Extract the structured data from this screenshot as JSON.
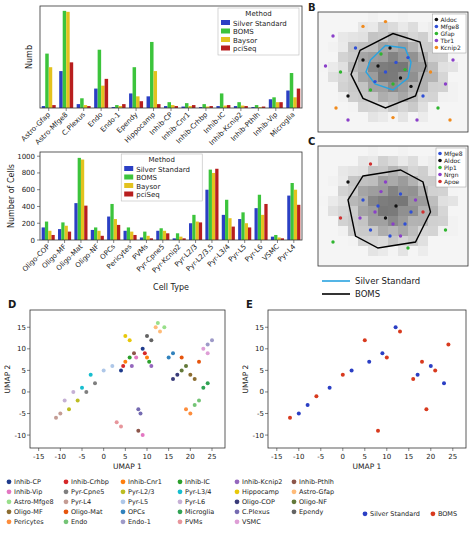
{
  "chart_data": [
    {
      "type": "bar",
      "y_label": "Numb",
      "legend_title": "Method",
      "legend": "top-right",
      "tick_labels": "x",
      "grid": false,
      "ylim": [
        0,
        1050
      ],
      "categories": [
        "Astro-Gfap",
        "Astro-Mfge8",
        "C.Plexus",
        "Endo",
        "Endo-1",
        "Ependy",
        "Hippocamp",
        "Inhib-CP",
        "Inhib-Cnr1",
        "Inhib-Crhbp",
        "Inhib-IC",
        "Inhib-Kcnip2",
        "Inhib-Pthlh",
        "Inhib-Vip",
        "Microglia"
      ],
      "series": [
        {
          "name": "Silver Standard",
          "color": "#2b3fc4",
          "values": [
            20,
            380,
            40,
            200,
            10,
            150,
            120,
            20,
            15,
            10,
            20,
            20,
            10,
            90,
            180
          ]
        },
        {
          "name": "BOMS",
          "color": "#3cc43c",
          "values": [
            560,
            1000,
            100,
            600,
            30,
            420,
            680,
            60,
            50,
            40,
            150,
            60,
            30,
            110,
            360
          ]
        },
        {
          "name": "Baysor",
          "color": "#e3c21e",
          "values": [
            420,
            990,
            30,
            230,
            20,
            120,
            380,
            30,
            20,
            15,
            25,
            25,
            10,
            60,
            110
          ]
        },
        {
          "name": "pciSeq",
          "color": "#b81e1e",
          "values": [
            30,
            470,
            20,
            300,
            40,
            70,
            40,
            20,
            30,
            20,
            30,
            20,
            15,
            60,
            200
          ]
        }
      ]
    },
    {
      "type": "bar",
      "y_label": "Number of Cells",
      "x_label": "Cell Type",
      "legend_title": "Method",
      "legend": "top",
      "grid": false,
      "ylim": [
        0,
        1050
      ],
      "yticks": [
        0,
        200,
        400,
        600,
        800,
        1000
      ],
      "categories": [
        "Oligo-COP",
        "Oligo-MF",
        "Oligo-Mat",
        "Oligo-NF",
        "OPCs",
        "Pericytes",
        "PVMs",
        "Pyr-Cpne5",
        "Pyr-Kcnip2",
        "Pyr-L2/3",
        "Pyr-L2/3,5",
        "Pyr-L3/4",
        "Pyr-L5",
        "Pyr-L6",
        "VSMC",
        "Pyr-L4"
      ],
      "series": [
        {
          "name": "Silver Standard",
          "color": "#2b3fc4",
          "values": [
            150,
            130,
            440,
            120,
            280,
            110,
            30,
            110,
            20,
            200,
            600,
            300,
            250,
            380,
            40,
            530
          ]
        },
        {
          "name": "BOMS",
          "color": "#3cc43c",
          "values": [
            220,
            210,
            980,
            150,
            430,
            150,
            100,
            140,
            80,
            300,
            840,
            480,
            330,
            540,
            60,
            680
          ]
        },
        {
          "name": "Baysor",
          "color": "#e3c21e",
          "values": [
            110,
            170,
            960,
            110,
            250,
            100,
            50,
            110,
            40,
            220,
            800,
            260,
            200,
            300,
            30,
            600
          ]
        },
        {
          "name": "pciSeq",
          "color": "#b81e1e",
          "values": [
            60,
            100,
            410,
            50,
            180,
            60,
            20,
            80,
            20,
            210,
            850,
            160,
            150,
            430,
            20,
            420
          ]
        }
      ]
    },
    {
      "type": "scatter",
      "panel": "B",
      "legend": "top-right",
      "tick_labels": false,
      "xlim": [
        0,
        100
      ],
      "ylim": [
        0,
        100
      ],
      "outlines": [
        {
          "method": 0,
          "x": [
            35,
            45,
            58,
            62,
            60,
            50,
            38,
            32
          ],
          "y": [
            60,
            72,
            70,
            58,
            45,
            35,
            40,
            50
          ]
        },
        {
          "method": 1,
          "x": [
            28,
            50,
            68,
            72,
            65,
            45,
            30,
            22
          ],
          "y": [
            68,
            82,
            75,
            55,
            30,
            20,
            28,
            48
          ]
        }
      ],
      "series": [
        {
          "name": "Aldoc",
          "color": "#111111",
          "x": [
            40,
            55,
            30,
            62,
            48,
            20
          ],
          "y": [
            55,
            45,
            60,
            38,
            70,
            30
          ]
        },
        {
          "name": "Mfge8",
          "color": "#2f4fd6",
          "x": [
            45,
            52,
            38,
            60,
            25,
            70
          ],
          "y": [
            50,
            58,
            42,
            62,
            70,
            30
          ]
        },
        {
          "name": "Gfap",
          "color": "#2fb52f",
          "x": [
            50,
            42,
            35,
            58,
            15,
            80
          ],
          "y": [
            40,
            65,
            35,
            52,
            50,
            20
          ]
        },
        {
          "name": "Tbr1",
          "color": "#8a3fc9",
          "x": [
            10,
            85,
            66,
            20,
            5,
            90
          ],
          "y": [
            80,
            40,
            10,
            10,
            55,
            60
          ]
        },
        {
          "name": "Kcnip2",
          "color": "#f08a1c",
          "x": [
            75,
            12,
            50,
            45,
            88,
            30
          ],
          "y": [
            50,
            20,
            12,
            92,
            10,
            88
          ]
        }
      ]
    },
    {
      "type": "scatter",
      "panel": "C",
      "legend": "top-right",
      "tick_labels": false,
      "xlim": [
        0,
        100
      ],
      "ylim": [
        0,
        100
      ],
      "outlines": [
        {
          "method": 1,
          "x": [
            30,
            55,
            70,
            75,
            65,
            40,
            25,
            20
          ],
          "y": [
            75,
            80,
            70,
            45,
            20,
            15,
            25,
            55
          ]
        }
      ],
      "series": [
        {
          "name": "Mfge8",
          "color": "#2f4fd6",
          "x": [
            40,
            55,
            35,
            62,
            48,
            30,
            58
          ],
          "y": [
            50,
            60,
            30,
            45,
            25,
            55,
            35
          ]
        },
        {
          "name": "Aldoc",
          "color": "#111111",
          "x": [
            45,
            52,
            20
          ],
          "y": [
            40,
            50,
            70
          ]
        },
        {
          "name": "Plp1",
          "color": "#2fb52f",
          "x": [
            10,
            85,
            60
          ],
          "y": [
            20,
            30,
            15
          ]
        },
        {
          "name": "Nrgn",
          "color": "#8a3fc9",
          "x": [
            42,
            50,
            65,
            38,
            55,
            28,
            45
          ],
          "y": [
            62,
            35,
            55,
            45,
            25,
            40,
            70
          ]
        },
        {
          "name": "Apoe",
          "color": "#d03030",
          "x": [
            70,
            15,
            35
          ],
          "y": [
            45,
            40,
            85
          ]
        }
      ]
    },
    {
      "type": "scatter",
      "panel": "D",
      "legend": "bottom",
      "x_label": "UMAP 1",
      "y_label": "UMAP 2",
      "xlim": [
        -17,
        28
      ],
      "ylim": [
        -13,
        19
      ],
      "xticks": [
        -15,
        -10,
        -5,
        0,
        5,
        10,
        15,
        20,
        25
      ],
      "yticks": [
        -10,
        -5,
        0,
        5,
        10,
        15
      ],
      "series": [
        {
          "name": "Inhib-CP",
          "color": "#1f3b8c",
          "x": [
            9,
            4
          ],
          "y": [
            10,
            5
          ]
        },
        {
          "name": "Inhib-Crhbp",
          "color": "#d62728",
          "x": [
            9.5,
            4.5
          ],
          "y": [
            9,
            6
          ]
        },
        {
          "name": "Inhib-Cnr1",
          "color": "#ff7f0e",
          "x": [
            10,
            5
          ],
          "y": [
            8,
            7
          ]
        },
        {
          "name": "Inhib-IC",
          "color": "#2ca02c",
          "x": [
            10.5,
            6
          ],
          "y": [
            7,
            8
          ]
        },
        {
          "name": "Inhib-Kcnip2",
          "color": "#9467bd",
          "x": [
            11,
            6.5
          ],
          "y": [
            6,
            6
          ]
        },
        {
          "name": "Inhib-Pthlh",
          "color": "#8c564b",
          "x": [
            7,
            8
          ],
          "y": [
            9,
            -9
          ]
        },
        {
          "name": "Inhib-Vip",
          "color": "#e377c2",
          "x": [
            7.5,
            9
          ],
          "y": [
            8,
            -10
          ]
        },
        {
          "name": "Pyr-Cpne5",
          "color": "#7f7f7f",
          "x": [
            -2,
            -4
          ],
          "y": [
            2,
            0
          ]
        },
        {
          "name": "Pyr-L2/3",
          "color": "#bcbd22",
          "x": [
            -6,
            -8
          ],
          "y": [
            -2,
            -4
          ]
        },
        {
          "name": "Pyr-L3/4",
          "color": "#17becf",
          "x": [
            -3,
            -5
          ],
          "y": [
            4,
            1
          ]
        },
        {
          "name": "Hippocamp",
          "color": "#e8c80a",
          "x": [
            5,
            6
          ],
          "y": [
            13,
            12
          ]
        },
        {
          "name": "Astro-Gfap",
          "color": "#ffbb78",
          "x": [
            12,
            13
          ],
          "y": [
            15,
            14
          ]
        },
        {
          "name": "Astro-Mfge8",
          "color": "#98df8a",
          "x": [
            12.5,
            14
          ],
          "y": [
            16,
            15
          ]
        },
        {
          "name": "Pyr-L4",
          "color": "#c49c94",
          "x": [
            -10,
            -11
          ],
          "y": [
            -5,
            -6
          ]
        },
        {
          "name": "Pyr-L5",
          "color": "#aec7e8",
          "x": [
            0,
            2
          ],
          "y": [
            5,
            6
          ]
        },
        {
          "name": "Pyr-L6",
          "color": "#c5b0d5",
          "x": [
            -7,
            -9
          ],
          "y": [
            0,
            -2
          ]
        },
        {
          "name": "Oligo-COP",
          "color": "#393b79",
          "x": [
            16,
            17
          ],
          "y": [
            3,
            4
          ]
        },
        {
          "name": "Oligo-NF",
          "color": "#637939",
          "x": [
            18,
            19
          ],
          "y": [
            5,
            6
          ]
        },
        {
          "name": "Oligo-MF",
          "color": "#8c6d31",
          "x": [
            20,
            21
          ],
          "y": [
            4,
            3
          ]
        },
        {
          "name": "Oligo-Mat",
          "color": "#e6550d",
          "x": [
            18,
            22
          ],
          "y": [
            8,
            7
          ]
        },
        {
          "name": "OPCs",
          "color": "#3182bd",
          "x": [
            15,
            16
          ],
          "y": [
            8,
            9
          ]
        },
        {
          "name": "Microglia",
          "color": "#31a354",
          "x": [
            23,
            24
          ],
          "y": [
            1,
            2
          ]
        },
        {
          "name": "C.Plexus",
          "color": "#756bb1",
          "x": [
            8,
            8.5
          ],
          "y": [
            -4,
            -5
          ]
        },
        {
          "name": "Ependy",
          "color": "#636363",
          "x": [
            11,
            10
          ],
          "y": [
            12,
            13
          ]
        },
        {
          "name": "Pericytes",
          "color": "#fd8d3c",
          "x": [
            19,
            20
          ],
          "y": [
            -4,
            -5
          ]
        },
        {
          "name": "Endo",
          "color": "#74c476",
          "x": [
            21,
            22
          ],
          "y": [
            -3,
            -2
          ]
        },
        {
          "name": "Endo-1",
          "color": "#9e9ac8",
          "x": [
            24,
            25
          ],
          "y": [
            11,
            12
          ]
        },
        {
          "name": "PVMs",
          "color": "#e7969c",
          "x": [
            3,
            4
          ],
          "y": [
            -7,
            -8
          ]
        },
        {
          "name": "VSMC",
          "color": "#de9ed6",
          "x": [
            23,
            24
          ],
          "y": [
            10,
            9
          ]
        }
      ]
    },
    {
      "type": "scatter",
      "panel": "E",
      "legend": "bottom",
      "x_label": "UMAP 1",
      "y_label": "UMAP 2",
      "xlim": [
        -17,
        28
      ],
      "ylim": [
        -13,
        19
      ],
      "xticks": [
        -15,
        -10,
        -5,
        0,
        5,
        10,
        15,
        20,
        25
      ],
      "yticks": [
        -10,
        -5,
        0,
        5,
        10,
        15
      ],
      "series": [
        {
          "name": "Silver Standard",
          "color": "#2b3fc4",
          "x": [
            -8,
            -3,
            2,
            6,
            9,
            12,
            17,
            20,
            23,
            -10
          ],
          "y": [
            -3,
            1,
            5,
            7,
            9,
            15,
            4,
            6,
            2,
            -5
          ]
        },
        {
          "name": "BOMS",
          "color": "#d83a1e",
          "x": [
            -12,
            -6,
            0,
            5,
            10,
            13,
            16,
            18,
            21,
            24,
            8,
            19
          ],
          "y": [
            -6,
            -1,
            4,
            12,
            8,
            14,
            3,
            7,
            5,
            11,
            -9,
            -4
          ]
        }
      ]
    }
  ],
  "outline_legend": {
    "items": [
      {
        "name": "Silver Standard",
        "color": "#29a3e0"
      },
      {
        "name": "BOMS",
        "color": "#000000"
      }
    ]
  }
}
